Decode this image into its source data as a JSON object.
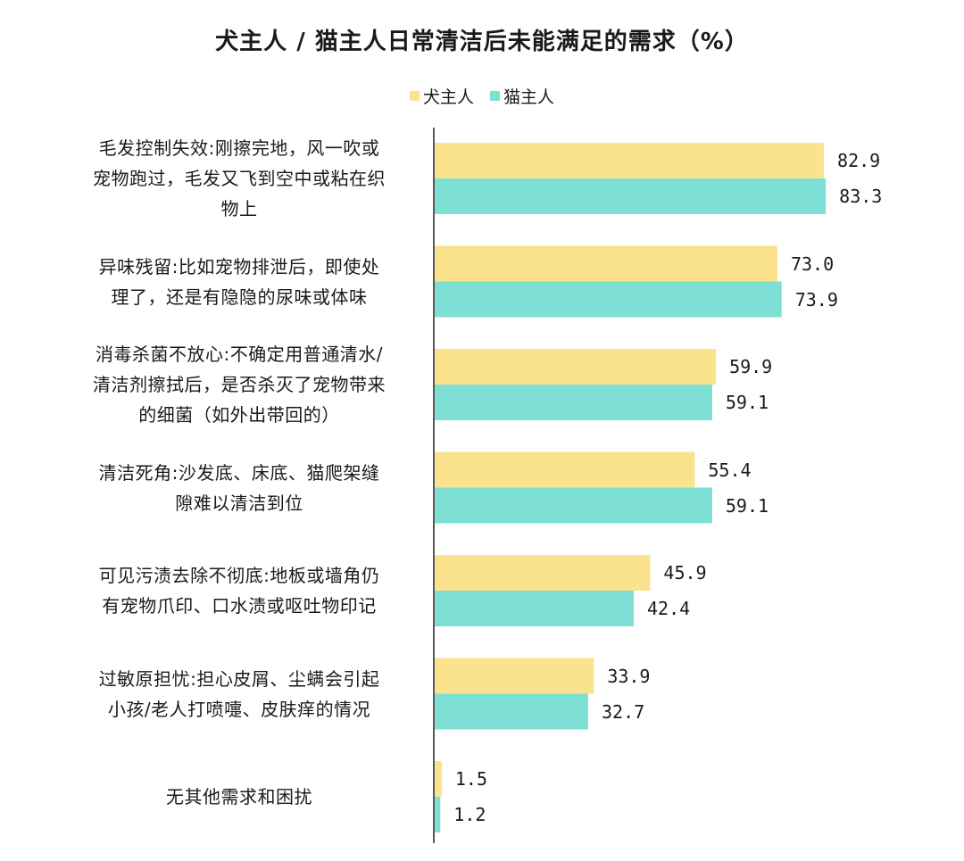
{
  "chart_data": {
    "type": "bar",
    "orientation": "horizontal",
    "title": "犬主人 / 猫主人日常清洁后未能满足的需求（%）",
    "categories": [
      [
        "毛发控制失效:刚擦完地，风一吹或",
        "宠物跑过，毛发又飞到空中或粘在织",
        "物上"
      ],
      [
        "异味残留:比如宠物排泄后，即使处",
        "理了，还是有隐隐的尿味或体味"
      ],
      [
        "消毒杀菌不放心:不确定用普通清水/",
        "清洁剂擦拭后，是否杀灭了宠物带来",
        "的细菌（如外出带回的）"
      ],
      [
        "清洁死角:沙发底、床底、猫爬架缝",
        "隙难以清洁到位"
      ],
      [
        "可见污渍去除不彻底:地板或墙角仍",
        "有宠物爪印、口水渍或呕吐物印记"
      ],
      [
        "过敏原担忧:担心皮屑、尘螨会引起",
        "小孩/老人打喷嚏、皮肤痒的情况"
      ],
      [
        "无其他需求和困扰"
      ]
    ],
    "series": [
      {
        "name": "犬主人",
        "color": "#FBE38E",
        "values": [
          82.9,
          73.0,
          59.9,
          55.4,
          45.9,
          33.9,
          1.5
        ],
        "labels": [
          "82.9",
          "73.0",
          "59.9",
          "55.4",
          "45.9",
          "33.9",
          "1.5"
        ]
      },
      {
        "name": "猫主人",
        "color": "#7EDFD5",
        "values": [
          83.3,
          73.9,
          59.1,
          59.1,
          42.4,
          32.7,
          1.2
        ],
        "labels": [
          "83.3",
          "73.9",
          "59.1",
          "59.1",
          "42.4",
          "32.7",
          "1.2"
        ]
      }
    ],
    "xlim": [
      0,
      100
    ],
    "legend_position": "top-center",
    "grid": false
  }
}
